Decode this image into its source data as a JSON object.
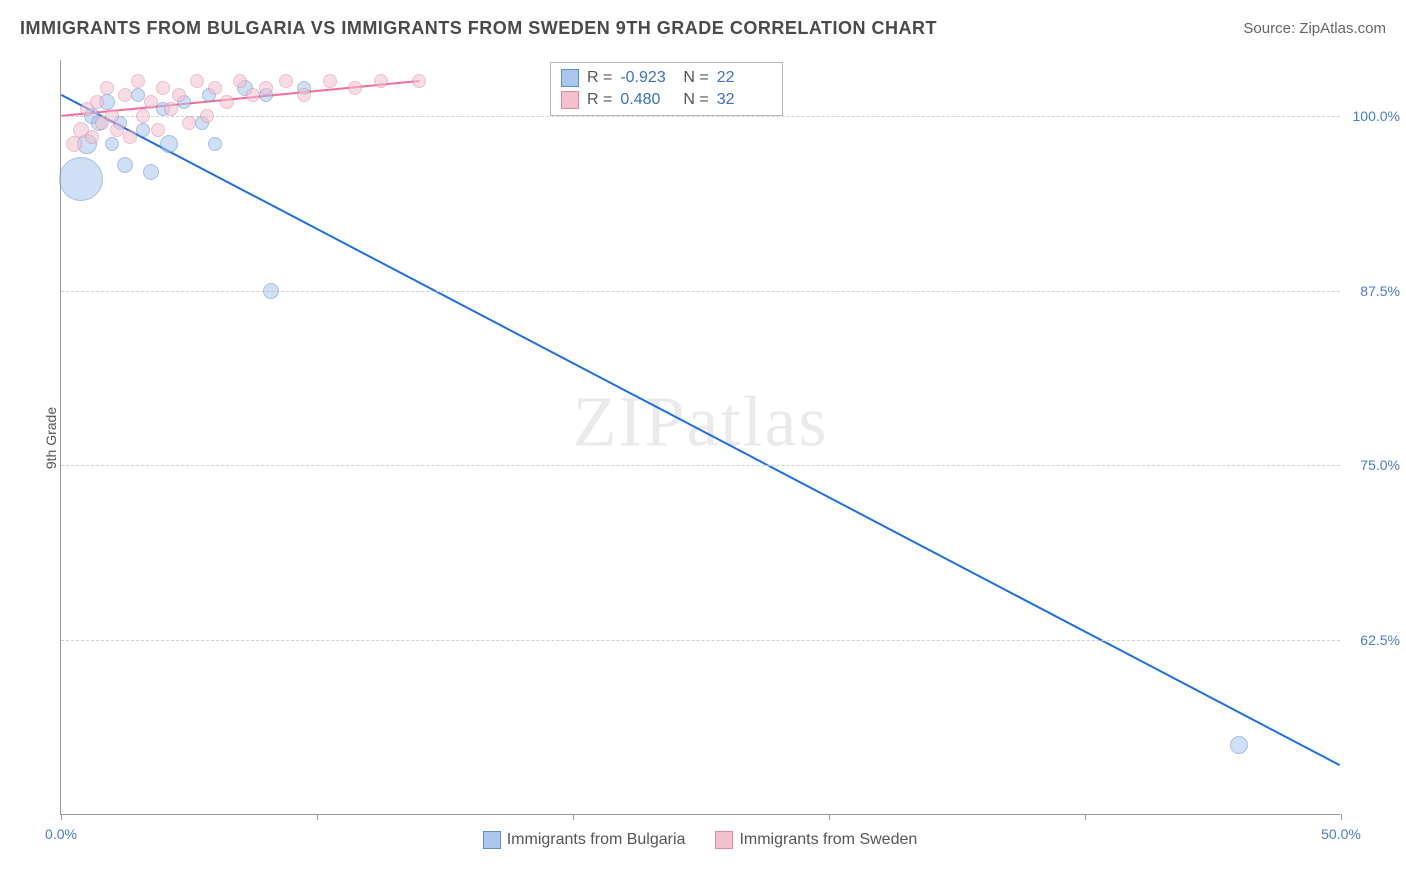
{
  "title": "IMMIGRANTS FROM BULGARIA VS IMMIGRANTS FROM SWEDEN 9TH GRADE CORRELATION CHART",
  "source_prefix": "Source: ",
  "source_name": "ZipAtlas.com",
  "ylabel": "9th Grade",
  "watermark": "ZIPatlas",
  "chart": {
    "type": "scatter",
    "xlim": [
      0,
      50
    ],
    "ylim": [
      50,
      104
    ],
    "xticks": [
      0,
      10,
      20,
      30,
      40,
      50
    ],
    "xtick_labels": {
      "0": "0.0%",
      "50": "50.0%"
    },
    "yticks": [
      62.5,
      75.0,
      87.5,
      100.0
    ],
    "ytick_labels": [
      "62.5%",
      "75.0%",
      "87.5%",
      "100.0%"
    ],
    "grid_color": "#d0d0d0",
    "background_color": "#ffffff",
    "axis_color": "#999999",
    "label_color": "#4a7bd0",
    "series": [
      {
        "name": "Immigrants from Bulgaria",
        "color_fill": "#a9c6ec",
        "color_stroke": "#5b8fd6",
        "trend_color": "#1d6fe3",
        "r": -0.923,
        "n": 22,
        "trend": {
          "x1": 0,
          "y1": 101.5,
          "x2": 50,
          "y2": 53.5
        },
        "points": [
          {
            "x": 0.8,
            "y": 95.5,
            "r": 22
          },
          {
            "x": 1.0,
            "y": 98.0,
            "r": 10
          },
          {
            "x": 1.2,
            "y": 100.0,
            "r": 8
          },
          {
            "x": 1.5,
            "y": 99.5,
            "r": 8
          },
          {
            "x": 1.8,
            "y": 101.0,
            "r": 8
          },
          {
            "x": 2.0,
            "y": 98.0,
            "r": 7
          },
          {
            "x": 2.3,
            "y": 99.5,
            "r": 7
          },
          {
            "x": 2.5,
            "y": 96.5,
            "r": 8
          },
          {
            "x": 3.0,
            "y": 101.5,
            "r": 7
          },
          {
            "x": 3.2,
            "y": 99.0,
            "r": 7
          },
          {
            "x": 3.5,
            "y": 96.0,
            "r": 8
          },
          {
            "x": 4.0,
            "y": 100.5,
            "r": 7
          },
          {
            "x": 4.2,
            "y": 98.0,
            "r": 9
          },
          {
            "x": 4.8,
            "y": 101.0,
            "r": 7
          },
          {
            "x": 5.5,
            "y": 99.5,
            "r": 7
          },
          {
            "x": 5.8,
            "y": 101.5,
            "r": 7
          },
          {
            "x": 6.0,
            "y": 98.0,
            "r": 7
          },
          {
            "x": 7.2,
            "y": 102.0,
            "r": 8
          },
          {
            "x": 8.0,
            "y": 101.5,
            "r": 7
          },
          {
            "x": 9.5,
            "y": 102.0,
            "r": 7
          },
          {
            "x": 8.2,
            "y": 87.5,
            "r": 8
          },
          {
            "x": 46.0,
            "y": 55.0,
            "r": 9
          }
        ]
      },
      {
        "name": "Immigrants from Sweden",
        "color_fill": "#f4c0ce",
        "color_stroke": "#e588a5",
        "trend_color": "#ef6f95",
        "r": 0.48,
        "n": 32,
        "trend": {
          "x1": 0,
          "y1": 100.0,
          "x2": 14,
          "y2": 102.5
        },
        "points": [
          {
            "x": 0.5,
            "y": 98.0,
            "r": 8
          },
          {
            "x": 0.8,
            "y": 99.0,
            "r": 8
          },
          {
            "x": 1.0,
            "y": 100.5,
            "r": 7
          },
          {
            "x": 1.2,
            "y": 98.5,
            "r": 7
          },
          {
            "x": 1.4,
            "y": 101.0,
            "r": 7
          },
          {
            "x": 1.6,
            "y": 99.5,
            "r": 7
          },
          {
            "x": 1.8,
            "y": 102.0,
            "r": 7
          },
          {
            "x": 2.0,
            "y": 100.0,
            "r": 7
          },
          {
            "x": 2.2,
            "y": 99.0,
            "r": 7
          },
          {
            "x": 2.5,
            "y": 101.5,
            "r": 7
          },
          {
            "x": 2.7,
            "y": 98.5,
            "r": 7
          },
          {
            "x": 3.0,
            "y": 102.5,
            "r": 7
          },
          {
            "x": 3.2,
            "y": 100.0,
            "r": 7
          },
          {
            "x": 3.5,
            "y": 101.0,
            "r": 7
          },
          {
            "x": 3.8,
            "y": 99.0,
            "r": 7
          },
          {
            "x": 4.0,
            "y": 102.0,
            "r": 7
          },
          {
            "x": 4.3,
            "y": 100.5,
            "r": 7
          },
          {
            "x": 4.6,
            "y": 101.5,
            "r": 7
          },
          {
            "x": 5.0,
            "y": 99.5,
            "r": 7
          },
          {
            "x": 5.3,
            "y": 102.5,
            "r": 7
          },
          {
            "x": 5.7,
            "y": 100.0,
            "r": 7
          },
          {
            "x": 6.0,
            "y": 102.0,
            "r": 7
          },
          {
            "x": 6.5,
            "y": 101.0,
            "r": 7
          },
          {
            "x": 7.0,
            "y": 102.5,
            "r": 7
          },
          {
            "x": 7.5,
            "y": 101.5,
            "r": 7
          },
          {
            "x": 8.0,
            "y": 102.0,
            "r": 7
          },
          {
            "x": 8.8,
            "y": 102.5,
            "r": 7
          },
          {
            "x": 9.5,
            "y": 101.5,
            "r": 7
          },
          {
            "x": 10.5,
            "y": 102.5,
            "r": 7
          },
          {
            "x": 11.5,
            "y": 102.0,
            "r": 7
          },
          {
            "x": 12.5,
            "y": 102.5,
            "r": 7
          },
          {
            "x": 14.0,
            "y": 102.5,
            "r": 7
          }
        ]
      }
    ]
  },
  "legend_top": {
    "r_label": "R =",
    "n_label": "N ="
  },
  "legend_bottom": [
    "Immigrants from Bulgaria",
    "Immigrants from Sweden"
  ]
}
